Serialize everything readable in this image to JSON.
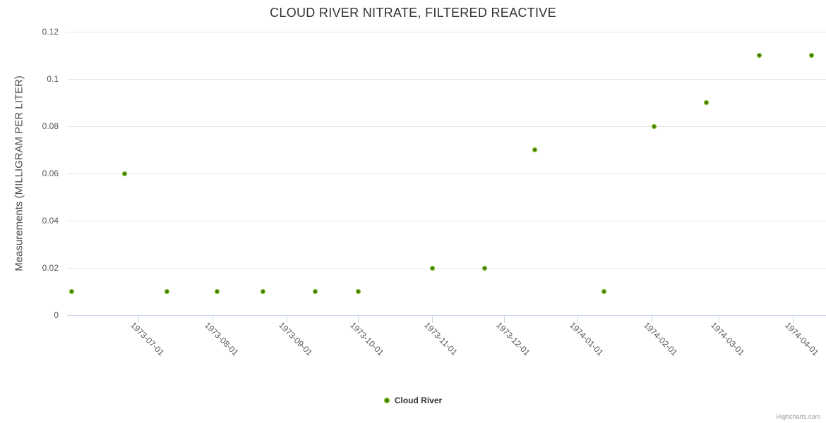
{
  "chart_data": {
    "type": "scatter",
    "title": "CLOUD RIVER NITRATE, FILTERED REACTIVE",
    "xlabel": "",
    "ylabel": "Measurements (MILLIGRAM PER LITER)",
    "xlim": [
      "1973-06-01",
      "1974-04-15"
    ],
    "ylim": [
      0,
      0.12
    ],
    "grid": true,
    "legend_position": "bottom-center",
    "yticks": [
      {
        "value": 0,
        "label": "0"
      },
      {
        "value": 0.02,
        "label": "0.02"
      },
      {
        "value": 0.04,
        "label": "0.04"
      },
      {
        "value": 0.06,
        "label": "0.06"
      },
      {
        "value": 0.08,
        "label": "0.08"
      },
      {
        "value": 0.1,
        "label": "0.1"
      },
      {
        "value": 0.12,
        "label": "0.12"
      }
    ],
    "xticks": [
      "1973-07-01",
      "1973-08-01",
      "1973-09-01",
      "1973-10-01",
      "1973-11-01",
      "1973-12-01",
      "1974-01-01",
      "1974-02-01",
      "1974-03-01",
      "1974-04-01"
    ],
    "series": [
      {
        "name": "Cloud River",
        "marker_color": "#70b511",
        "marker_center_color": "#3d6a0b",
        "points": [
          {
            "date": "1973-06-03",
            "value": 0.01
          },
          {
            "date": "1973-06-25",
            "value": 0.06
          },
          {
            "date": "1973-07-13",
            "value": 0.01
          },
          {
            "date": "1973-08-03",
            "value": 0.01
          },
          {
            "date": "1973-08-22",
            "value": 0.01
          },
          {
            "date": "1973-09-13",
            "value": 0.01
          },
          {
            "date": "1973-10-01",
            "value": 0.01
          },
          {
            "date": "1973-11-01",
            "value": 0.02
          },
          {
            "date": "1973-11-23",
            "value": 0.02
          },
          {
            "date": "1973-12-14",
            "value": 0.07
          },
          {
            "date": "1974-01-12",
            "value": 0.01
          },
          {
            "date": "1974-02-02",
            "value": 0.08
          },
          {
            "date": "1974-02-24",
            "value": 0.09
          },
          {
            "date": "1974-03-18",
            "value": 0.11
          },
          {
            "date": "1974-04-09",
            "value": 0.11
          }
        ]
      }
    ],
    "colors": {
      "grid": "#e6e6e6",
      "axis_line": "#ccd6eb",
      "title_text": "#333333",
      "tick_label_text": "#555555",
      "credits_text": "#999999"
    },
    "credits": "Highcharts.com"
  }
}
